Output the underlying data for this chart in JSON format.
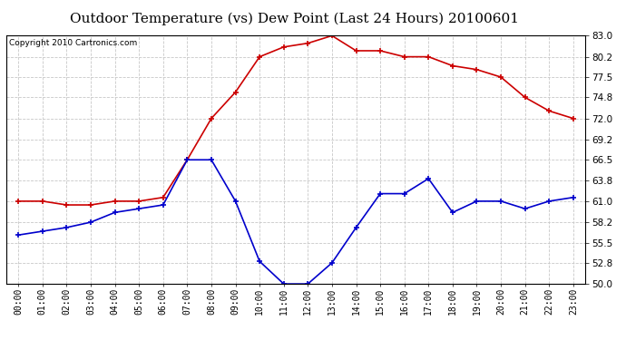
{
  "title": "Outdoor Temperature (vs) Dew Point (Last 24 Hours) 20100601",
  "copyright": "Copyright 2010 Cartronics.com",
  "hours": [
    "00:00",
    "01:00",
    "02:00",
    "03:00",
    "04:00",
    "05:00",
    "06:00",
    "07:00",
    "08:00",
    "09:00",
    "10:00",
    "11:00",
    "12:00",
    "13:00",
    "14:00",
    "15:00",
    "16:00",
    "17:00",
    "18:00",
    "19:00",
    "20:00",
    "21:00",
    "22:00",
    "23:00"
  ],
  "temp": [
    61.0,
    61.0,
    60.5,
    60.5,
    61.0,
    61.0,
    61.5,
    66.5,
    72.0,
    75.5,
    80.2,
    81.5,
    82.0,
    83.0,
    81.0,
    81.0,
    80.2,
    80.2,
    79.0,
    78.5,
    77.5,
    74.8,
    73.0,
    72.0
  ],
  "dew": [
    56.5,
    57.0,
    57.5,
    58.2,
    59.5,
    60.0,
    60.5,
    66.5,
    66.5,
    61.0,
    53.0,
    50.0,
    50.0,
    52.8,
    57.5,
    62.0,
    62.0,
    64.0,
    59.5,
    61.0,
    61.0,
    60.0,
    61.0,
    61.5
  ],
  "temp_color": "#cc0000",
  "dew_color": "#0000cc",
  "bg_color": "#ffffff",
  "plot_bg": "#ffffff",
  "grid_color": "#c8c8c8",
  "yticks": [
    50.0,
    52.8,
    55.5,
    58.2,
    61.0,
    63.8,
    66.5,
    69.2,
    72.0,
    74.8,
    77.5,
    80.2,
    83.0
  ],
  "ymin": 50.0,
  "ymax": 83.0,
  "title_fontsize": 11,
  "copyright_fontsize": 6.5,
  "tick_fontsize": 7,
  "ytick_fontsize": 7.5
}
